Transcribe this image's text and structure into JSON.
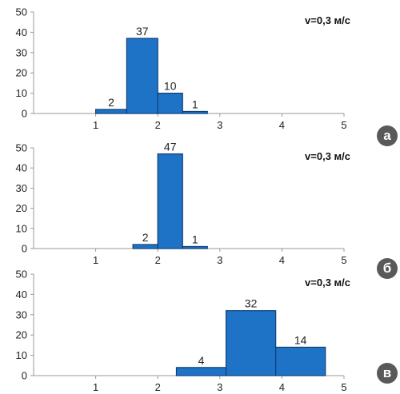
{
  "chart_data": [
    {
      "type": "bar",
      "panel_label": "а",
      "annotation": "v=0,3 м/с",
      "bins": [
        [
          1.0,
          1.5
        ],
        [
          1.5,
          2.0
        ],
        [
          2.0,
          2.4
        ],
        [
          2.4,
          2.8
        ]
      ],
      "values": [
        2,
        37,
        10,
        1
      ],
      "data_labels": [
        "2",
        "37",
        "10",
        "1"
      ],
      "xlim": [
        0,
        5
      ],
      "ylim": [
        0,
        50
      ],
      "xticks": [
        "1",
        "2",
        "3",
        "4",
        "5"
      ],
      "yticks": [
        "0",
        "10",
        "20",
        "30",
        "40",
        "50"
      ],
      "grid": false
    },
    {
      "type": "bar",
      "panel_label": "б",
      "annotation": "v=0,3 м/с",
      "bins": [
        [
          1.6,
          2.0
        ],
        [
          2.0,
          2.4
        ],
        [
          2.4,
          2.8
        ]
      ],
      "values": [
        2,
        47,
        1
      ],
      "data_labels": [
        "2",
        "47",
        "1"
      ],
      "xlim": [
        0,
        5
      ],
      "ylim": [
        0,
        50
      ],
      "xticks": [
        "1",
        "2",
        "3",
        "4",
        "5"
      ],
      "yticks": [
        "0",
        "10",
        "20",
        "30",
        "40",
        "50"
      ],
      "grid": false
    },
    {
      "type": "bar",
      "panel_label": "в",
      "annotation": "v=0,3 м/с",
      "bins": [
        [
          2.3,
          3.1
        ],
        [
          3.1,
          3.9
        ],
        [
          3.9,
          4.7
        ]
      ],
      "values": [
        4,
        32,
        14
      ],
      "data_labels": [
        "4",
        "32",
        "14"
      ],
      "xlim": [
        0,
        5
      ],
      "ylim": [
        0,
        50
      ],
      "xticks": [
        "1",
        "2",
        "3",
        "4",
        "5"
      ],
      "yticks": [
        "0",
        "10",
        "20",
        "30",
        "40",
        "50"
      ],
      "grid": false
    }
  ],
  "colors": {
    "bar_fill": "#1f73c6",
    "bar_stroke": "#0d3f78",
    "axis": "#9a9a9a",
    "badge": "#595959"
  }
}
